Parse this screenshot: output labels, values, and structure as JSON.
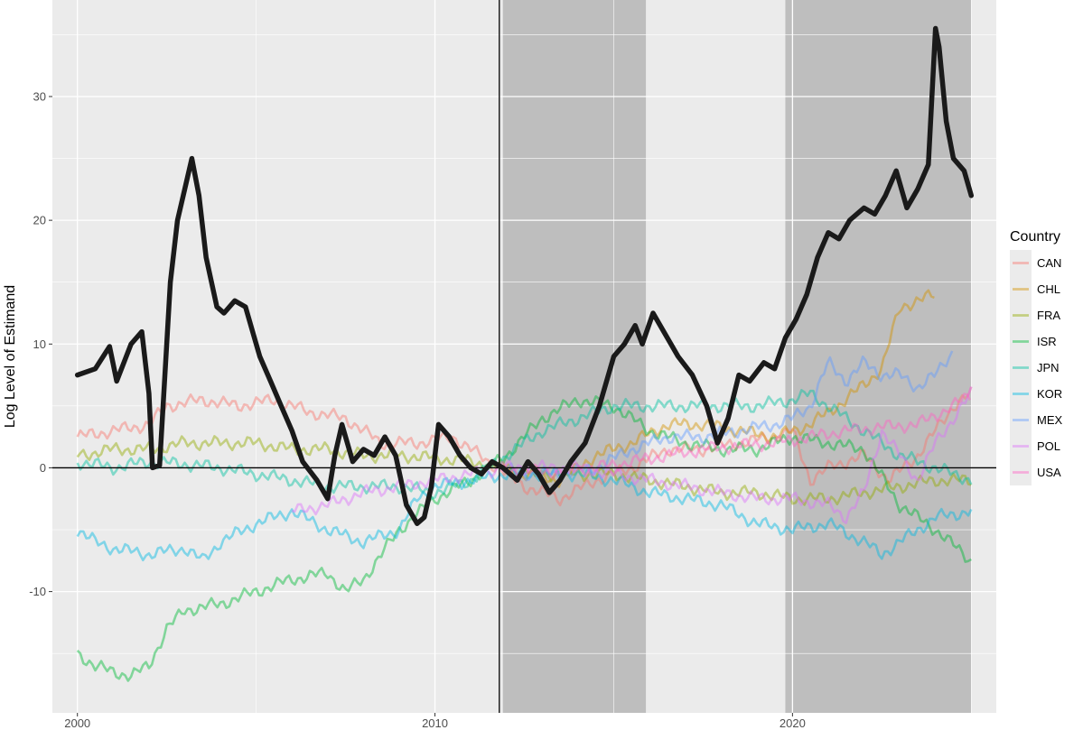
{
  "chart_data": {
    "type": "line",
    "ylabel": "Log Level of Estimand",
    "xlim": [
      1999.3,
      2025.7
    ],
    "ylim": [
      -19.8,
      37.8
    ],
    "x_ticks": [
      2000,
      2010,
      2020
    ],
    "x_tick_labels": [
      "2000",
      "2010",
      "2020"
    ],
    "y_ticks": [
      -10,
      0,
      10,
      20,
      30
    ],
    "y_tick_labels": [
      "-10",
      "0",
      "10",
      "20",
      "30"
    ],
    "grid": true,
    "legend_position": "right",
    "legend_title": "Country",
    "panel_background": "#ebebeb",
    "grid_color": "#ffffff",
    "shaded_regions": [
      {
        "x_start": 2011.9,
        "x_end": 2015.9,
        "color": "#bebebe"
      },
      {
        "x_start": 2019.8,
        "x_end": 2025.0,
        "color": "#bebebe"
      }
    ],
    "reference_lines": {
      "vertical_x": 2011.8,
      "horizontal_y": 0
    },
    "highlight_series": {
      "color": "#1a1a1a",
      "x": [
        2000.0,
        2000.5,
        2000.9,
        2001.1,
        2001.5,
        2001.8,
        2002.0,
        2002.1,
        2002.3,
        2002.6,
        2002.8,
        2003.0,
        2003.2,
        2003.4,
        2003.6,
        2003.9,
        2004.1,
        2004.4,
        2004.7,
        2004.9,
        2005.1,
        2005.4,
        2005.7,
        2006.0,
        2006.3,
        2006.7,
        2007.0,
        2007.2,
        2007.4,
        2007.7,
        2008.0,
        2008.3,
        2008.6,
        2008.9,
        2009.2,
        2009.5,
        2009.7,
        2009.9,
        2010.1,
        2010.4,
        2010.7,
        2011.0,
        2011.3,
        2011.6,
        2011.9,
        2012.3,
        2012.6,
        2012.9,
        2013.2,
        2013.5,
        2013.8,
        2014.2,
        2014.6,
        2015.0,
        2015.3,
        2015.6,
        2015.8,
        2016.1,
        2016.4,
        2016.8,
        2017.2,
        2017.6,
        2017.9,
        2018.2,
        2018.5,
        2018.8,
        2019.2,
        2019.5,
        2019.8,
        2020.1,
        2020.4,
        2020.7,
        2021.0,
        2021.3,
        2021.6,
        2022.0,
        2022.3,
        2022.6,
        2022.9,
        2023.2,
        2023.5,
        2023.8,
        2024.0,
        2024.1,
        2024.3,
        2024.5,
        2024.8,
        2025.0
      ],
      "y": [
        7.5,
        8.0,
        9.8,
        7.0,
        10.0,
        11.0,
        6.0,
        0.0,
        0.2,
        15.0,
        20.0,
        22.5,
        25.0,
        22.0,
        17.0,
        13.0,
        12.5,
        13.5,
        13.0,
        11.0,
        9.0,
        7.0,
        5.0,
        3.0,
        0.5,
        -1.0,
        -2.5,
        1.0,
        3.5,
        0.5,
        1.5,
        1.0,
        2.5,
        1.0,
        -3.0,
        -4.5,
        -4.0,
        -1.5,
        3.5,
        2.5,
        1.0,
        0.0,
        -0.5,
        0.5,
        0.0,
        -1.0,
        0.5,
        -0.5,
        -2.0,
        -1.0,
        0.5,
        2.0,
        5.0,
        9.0,
        10.0,
        11.5,
        10.0,
        12.5,
        11.0,
        9.0,
        7.5,
        5.0,
        2.0,
        4.0,
        7.5,
        7.0,
        8.5,
        8.0,
        10.5,
        12.0,
        14.0,
        17.0,
        19.0,
        18.5,
        20.0,
        21.0,
        20.5,
        22.0,
        24.0,
        21.0,
        22.5,
        24.5,
        35.5,
        34.0,
        28.0,
        25.0,
        24.0,
        22.0
      ]
    },
    "series": [
      {
        "name": "CAN",
        "color": "#f8766d"
      },
      {
        "name": "CHL",
        "color": "#d39200"
      },
      {
        "name": "FRA",
        "color": "#93aa00"
      },
      {
        "name": "ISR",
        "color": "#00ba38"
      },
      {
        "name": "JPN",
        "color": "#00c19f"
      },
      {
        "name": "KOR",
        "color": "#00b9e3"
      },
      {
        "name": "MEX",
        "color": "#619cff"
      },
      {
        "name": "POL",
        "color": "#db72fb"
      },
      {
        "name": "USA",
        "color": "#ff61c3"
      }
    ]
  }
}
